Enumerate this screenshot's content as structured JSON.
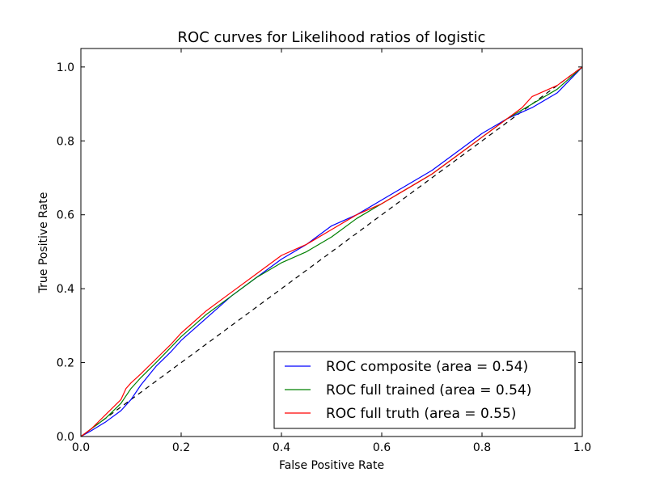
{
  "chart_data": {
    "type": "line",
    "title": "ROC curves for Likelihood ratios of logistic",
    "xlabel": "False Positive Rate",
    "ylabel": "True Positive Rate",
    "xlim": [
      0.0,
      1.0
    ],
    "ylim": [
      0.0,
      1.05
    ],
    "xticks": [
      0.0,
      0.2,
      0.4,
      0.6,
      0.8,
      1.0
    ],
    "yticks": [
      0.0,
      0.2,
      0.4,
      0.6,
      0.8,
      1.0
    ],
    "xtick_labels": [
      "0.0",
      "0.2",
      "0.4",
      "0.6",
      "0.8",
      "1.0"
    ],
    "ytick_labels": [
      "0.0",
      "0.2",
      "0.4",
      "0.6",
      "0.8",
      "1.0"
    ],
    "grid": false,
    "legend_position": "bottom-right",
    "diagonal": {
      "name": "chance",
      "color": "#000000",
      "style": "dashed",
      "x": [
        0.0,
        1.0
      ],
      "y": [
        0.0,
        1.0
      ]
    },
    "series": [
      {
        "name": "ROC composite (area = 0.54)",
        "color": "#0000ff",
        "x": [
          0.0,
          0.02,
          0.05,
          0.08,
          0.1,
          0.12,
          0.15,
          0.18,
          0.2,
          0.25,
          0.3,
          0.35,
          0.4,
          0.45,
          0.5,
          0.55,
          0.6,
          0.65,
          0.7,
          0.75,
          0.8,
          0.85,
          0.9,
          0.95,
          1.0
        ],
        "y": [
          0.0,
          0.015,
          0.04,
          0.07,
          0.1,
          0.14,
          0.19,
          0.23,
          0.26,
          0.32,
          0.38,
          0.43,
          0.48,
          0.52,
          0.57,
          0.6,
          0.64,
          0.68,
          0.72,
          0.77,
          0.82,
          0.86,
          0.89,
          0.93,
          1.0
        ]
      },
      {
        "name": "ROC full trained (area = 0.54)",
        "color": "#008000",
        "x": [
          0.0,
          0.02,
          0.05,
          0.08,
          0.1,
          0.12,
          0.15,
          0.2,
          0.25,
          0.3,
          0.35,
          0.4,
          0.45,
          0.5,
          0.55,
          0.6,
          0.65,
          0.7,
          0.75,
          0.8,
          0.85,
          0.9,
          0.95,
          1.0
        ],
        "y": [
          0.0,
          0.02,
          0.05,
          0.09,
          0.13,
          0.16,
          0.2,
          0.27,
          0.33,
          0.38,
          0.43,
          0.47,
          0.5,
          0.54,
          0.59,
          0.63,
          0.67,
          0.71,
          0.76,
          0.81,
          0.86,
          0.9,
          0.94,
          1.0
        ]
      },
      {
        "name": "ROC full truth (area = 0.55)",
        "color": "#ff0000",
        "x": [
          0.0,
          0.02,
          0.05,
          0.08,
          0.09,
          0.1,
          0.12,
          0.15,
          0.18,
          0.2,
          0.25,
          0.3,
          0.35,
          0.4,
          0.45,
          0.5,
          0.55,
          0.6,
          0.65,
          0.7,
          0.75,
          0.8,
          0.85,
          0.88,
          0.9,
          0.95,
          1.0
        ],
        "y": [
          0.0,
          0.02,
          0.06,
          0.1,
          0.13,
          0.145,
          0.17,
          0.21,
          0.25,
          0.28,
          0.34,
          0.39,
          0.44,
          0.49,
          0.52,
          0.56,
          0.6,
          0.63,
          0.67,
          0.71,
          0.76,
          0.81,
          0.86,
          0.89,
          0.92,
          0.95,
          1.0
        ]
      }
    ]
  }
}
